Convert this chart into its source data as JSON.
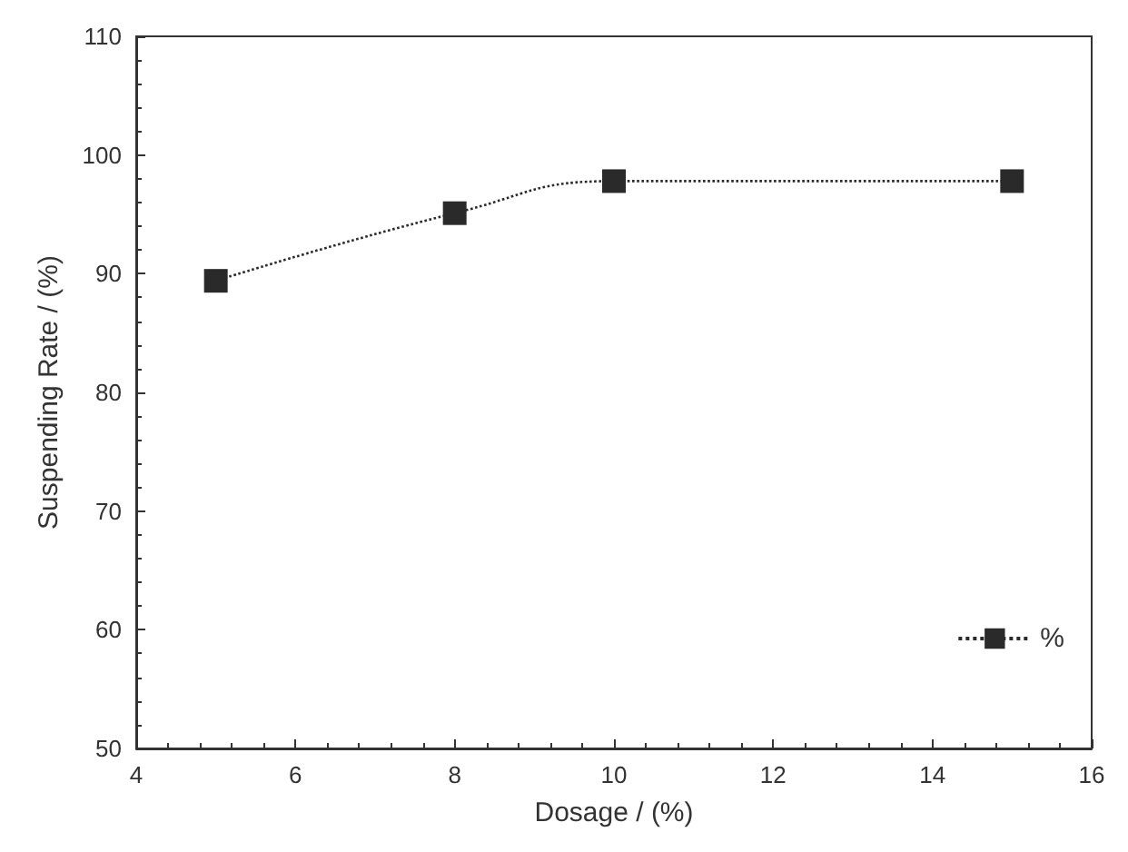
{
  "chart_data": {
    "type": "line",
    "xlabel": "Dosage / (%)",
    "ylabel": "Suspending Rate / (%)",
    "x": [
      5,
      8,
      10,
      15
    ],
    "series": [
      {
        "name": "%",
        "color": "#2a2a2a",
        "values": [
          89.4,
          95.1,
          97.8,
          97.8
        ]
      }
    ],
    "xlim": [
      4,
      16
    ],
    "xticks": [
      4,
      6,
      8,
      10,
      12,
      14,
      16
    ],
    "ylim": [
      50,
      110
    ],
    "yticks": [
      50,
      60,
      70,
      80,
      90,
      100,
      110
    ],
    "grid": false,
    "legend": "bottom right",
    "marker": "square",
    "line_style": "dotted"
  }
}
